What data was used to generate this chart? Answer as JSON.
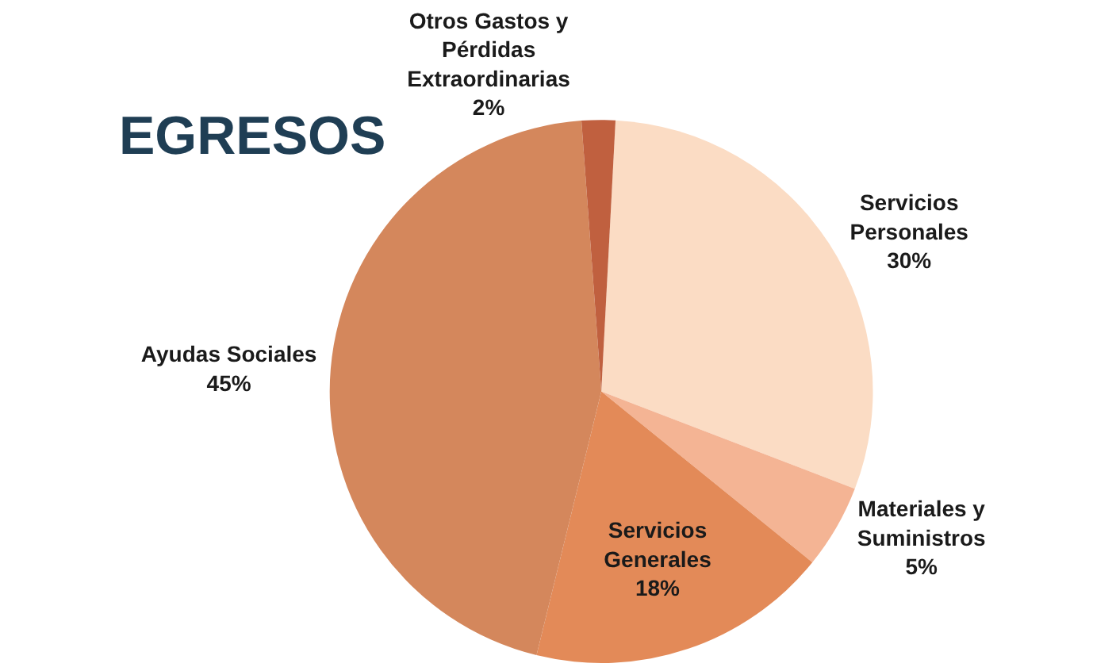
{
  "chart_data": {
    "type": "pie",
    "title": "EGRESOS",
    "categories": [
      "Servicios Personales",
      "Materiales y Suministros",
      "Servicios Generales",
      "Ayudas Sociales",
      "Otros Gastos y Pérdidas Extraordinarias"
    ],
    "values": [
      30,
      5,
      18,
      45,
      2
    ],
    "value_labels": [
      "30%",
      "5%",
      "18%",
      "45%",
      "2%"
    ],
    "colors": [
      "#fbdcc4",
      "#f4b494",
      "#e38a58",
      "#d4875c",
      "#c0603f"
    ]
  }
}
